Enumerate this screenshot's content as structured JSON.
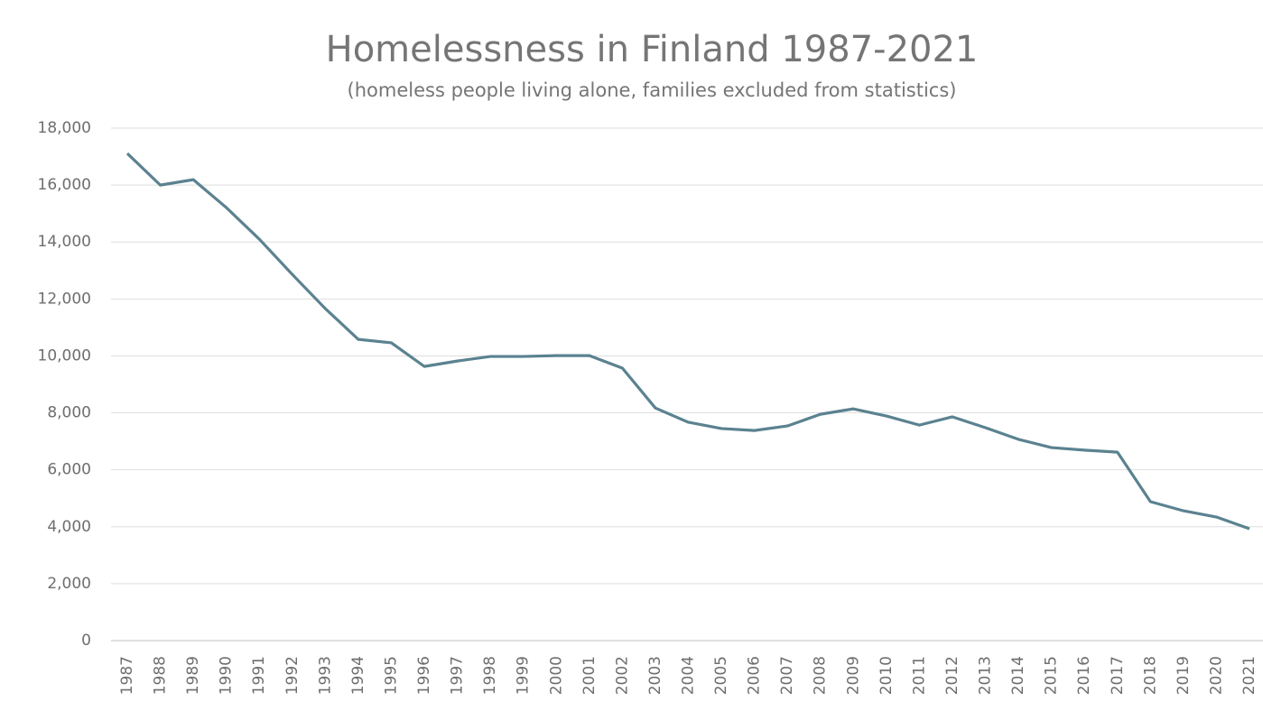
{
  "chart_data": {
    "type": "line",
    "title": "Homelessness in Finland 1987-2021",
    "subtitle": "(homeless people living alone, families excluded from statistics)",
    "categories": [
      "1987",
      "1988",
      "1989",
      "1990",
      "1991",
      "1992",
      "1993",
      "1994",
      "1995",
      "1996",
      "1997",
      "1998",
      "1999",
      "2000",
      "2001",
      "2002",
      "2003",
      "2004",
      "2005",
      "2006",
      "2007",
      "2008",
      "2009",
      "2010",
      "2011",
      "2012",
      "2013",
      "2014",
      "2015",
      "2016",
      "2017",
      "2018",
      "2019",
      "2020",
      "2021"
    ],
    "series": [
      {
        "color": "#5b8290",
        "values": [
          17110,
          16000,
          16190,
          15210,
          14100,
          12860,
          11660,
          10580,
          10460,
          9630,
          9820,
          9980,
          9980,
          10010,
          10010,
          9570,
          8170,
          7670,
          7450,
          7380,
          7540,
          7950,
          8140,
          7890,
          7570,
          7860,
          7480,
          7070,
          6780,
          6690,
          6620,
          4880,
          4560,
          4340,
          3930
        ]
      }
    ],
    "ylim": [
      0,
      18000
    ],
    "yticks": [
      0,
      {
        "value": 2000,
        "label": "2,000"
      },
      {
        "value": 4000,
        "label": "4,000"
      },
      {
        "value": 6000,
        "label": "6,000"
      },
      {
        "value": 8000,
        "label": "8,000"
      },
      {
        "value": 10000,
        "label": "10,000"
      },
      {
        "value": 12000,
        "label": "12,000"
      },
      {
        "value": 14000,
        "label": "14,000"
      },
      {
        "value": 16000,
        "label": "16,000"
      },
      {
        "value": 18000,
        "label": "18,000"
      }
    ],
    "grid": true
  }
}
